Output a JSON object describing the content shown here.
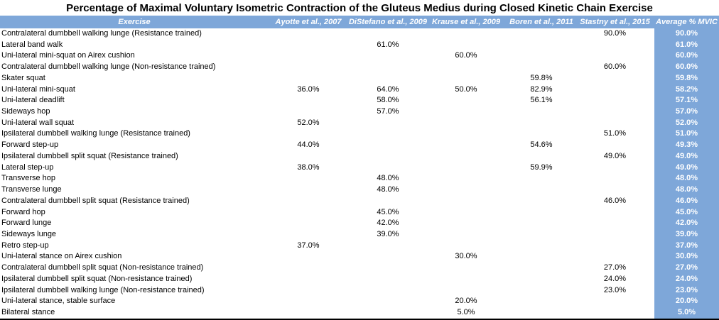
{
  "title": "Percentage of Maximal Voluntary Isometric Contraction of the Gluteus Medius during Closed Kinetic Chain Exercise",
  "colors": {
    "header_bg": "#7EA7D9",
    "average_column_bg": "#7EA7D9",
    "header_text": "#FFFFFF",
    "average_text": "#FFFFFF",
    "body_text": "#000000",
    "bottom_border": "#000000"
  },
  "chart_data": {
    "type": "table",
    "columns": [
      "Exercise",
      "Ayotte et al., 2007",
      "DiStefano et al., 2009",
      "Krause et al., 2009",
      "Boren et al., 2011",
      "Stastny et al., 2015",
      "Average % MVIC"
    ],
    "rows": [
      {
        "exercise": "Contralateral dumbbell walking lunge (Resistance trained)",
        "ayotte": "",
        "distefano": "",
        "krause": "",
        "boren": "",
        "stastny": "90.0%",
        "average": "90.0%"
      },
      {
        "exercise": "Lateral band walk",
        "ayotte": "",
        "distefano": "61.0%",
        "krause": "",
        "boren": "",
        "stastny": "",
        "average": "61.0%"
      },
      {
        "exercise": "Uni-lateral mini-squat on Airex cushion",
        "ayotte": "",
        "distefano": "",
        "krause": "60.0%",
        "boren": "",
        "stastny": "",
        "average": "60.0%"
      },
      {
        "exercise": "Contralateral dumbbell walking lunge (Non-resistance trained)",
        "ayotte": "",
        "distefano": "",
        "krause": "",
        "boren": "",
        "stastny": "60.0%",
        "average": "60.0%"
      },
      {
        "exercise": "Skater squat",
        "ayotte": "",
        "distefano": "",
        "krause": "",
        "boren": "59.8%",
        "stastny": "",
        "average": "59.8%"
      },
      {
        "exercise": "Uni-lateral mini-squat",
        "ayotte": "36.0%",
        "distefano": "64.0%",
        "krause": "50.0%",
        "boren": "82.9%",
        "stastny": "",
        "average": "58.2%"
      },
      {
        "exercise": "Uni-lateral deadlift",
        "ayotte": "",
        "distefano": "58.0%",
        "krause": "",
        "boren": "56.1%",
        "stastny": "",
        "average": "57.1%"
      },
      {
        "exercise": "Sideways hop",
        "ayotte": "",
        "distefano": "57.0%",
        "krause": "",
        "boren": "",
        "stastny": "",
        "average": "57.0%"
      },
      {
        "exercise": "Uni-lateral wall squat",
        "ayotte": "52.0%",
        "distefano": "",
        "krause": "",
        "boren": "",
        "stastny": "",
        "average": "52.0%"
      },
      {
        "exercise": "Ipsilateral dumbbell walking lunge (Resistance trained)",
        "ayotte": "",
        "distefano": "",
        "krause": "",
        "boren": "",
        "stastny": "51.0%",
        "average": "51.0%"
      },
      {
        "exercise": "Forward step-up",
        "ayotte": "44.0%",
        "distefano": "",
        "krause": "",
        "boren": "54.6%",
        "stastny": "",
        "average": "49.3%"
      },
      {
        "exercise": "Ipsilateral dumbbell split squat (Resistance trained)",
        "ayotte": "",
        "distefano": "",
        "krause": "",
        "boren": "",
        "stastny": "49.0%",
        "average": "49.0%"
      },
      {
        "exercise": "Lateral step-up",
        "ayotte": "38.0%",
        "distefano": "",
        "krause": "",
        "boren": "59.9%",
        "stastny": "",
        "average": "49.0%"
      },
      {
        "exercise": "Transverse hop",
        "ayotte": "",
        "distefano": "48.0%",
        "krause": "",
        "boren": "",
        "stastny": "",
        "average": "48.0%"
      },
      {
        "exercise": "Transverse lunge",
        "ayotte": "",
        "distefano": "48.0%",
        "krause": "",
        "boren": "",
        "stastny": "",
        "average": "48.0%"
      },
      {
        "exercise": "Contralateral dumbbell split squat (Resistance trained)",
        "ayotte": "",
        "distefano": "",
        "krause": "",
        "boren": "",
        "stastny": "46.0%",
        "average": "46.0%"
      },
      {
        "exercise": "Forward hop",
        "ayotte": "",
        "distefano": "45.0%",
        "krause": "",
        "boren": "",
        "stastny": "",
        "average": "45.0%"
      },
      {
        "exercise": "Forward lunge",
        "ayotte": "",
        "distefano": "42.0%",
        "krause": "",
        "boren": "",
        "stastny": "",
        "average": "42.0%"
      },
      {
        "exercise": "Sideways lunge",
        "ayotte": "",
        "distefano": "39.0%",
        "krause": "",
        "boren": "",
        "stastny": "",
        "average": "39.0%"
      },
      {
        "exercise": "Retro step-up",
        "ayotte": "37.0%",
        "distefano": "",
        "krause": "",
        "boren": "",
        "stastny": "",
        "average": "37.0%"
      },
      {
        "exercise": "Uni-lateral stance on Airex cushion",
        "ayotte": "",
        "distefano": "",
        "krause": "30.0%",
        "boren": "",
        "stastny": "",
        "average": "30.0%"
      },
      {
        "exercise": "Contralateral dumbbell split squat (Non-resistance trained)",
        "ayotte": "",
        "distefano": "",
        "krause": "",
        "boren": "",
        "stastny": "27.0%",
        "average": "27.0%"
      },
      {
        "exercise": "Ipsilateral dumbbell split squat (Non-resistance trained)",
        "ayotte": "",
        "distefano": "",
        "krause": "",
        "boren": "",
        "stastny": "24.0%",
        "average": "24.0%"
      },
      {
        "exercise": "Ipsilateral dumbbell walking lunge (Non-resistance trained)",
        "ayotte": "",
        "distefano": "",
        "krause": "",
        "boren": "",
        "stastny": "23.0%",
        "average": "23.0%"
      },
      {
        "exercise": "Uni-lateral stance, stable surface",
        "ayotte": "",
        "distefano": "",
        "krause": "20.0%",
        "boren": "",
        "stastny": "",
        "average": "20.0%"
      },
      {
        "exercise": "Bilateral stance",
        "ayotte": "",
        "distefano": "",
        "krause": "5.0%",
        "boren": "",
        "stastny": "",
        "average": "5.0%"
      }
    ]
  }
}
